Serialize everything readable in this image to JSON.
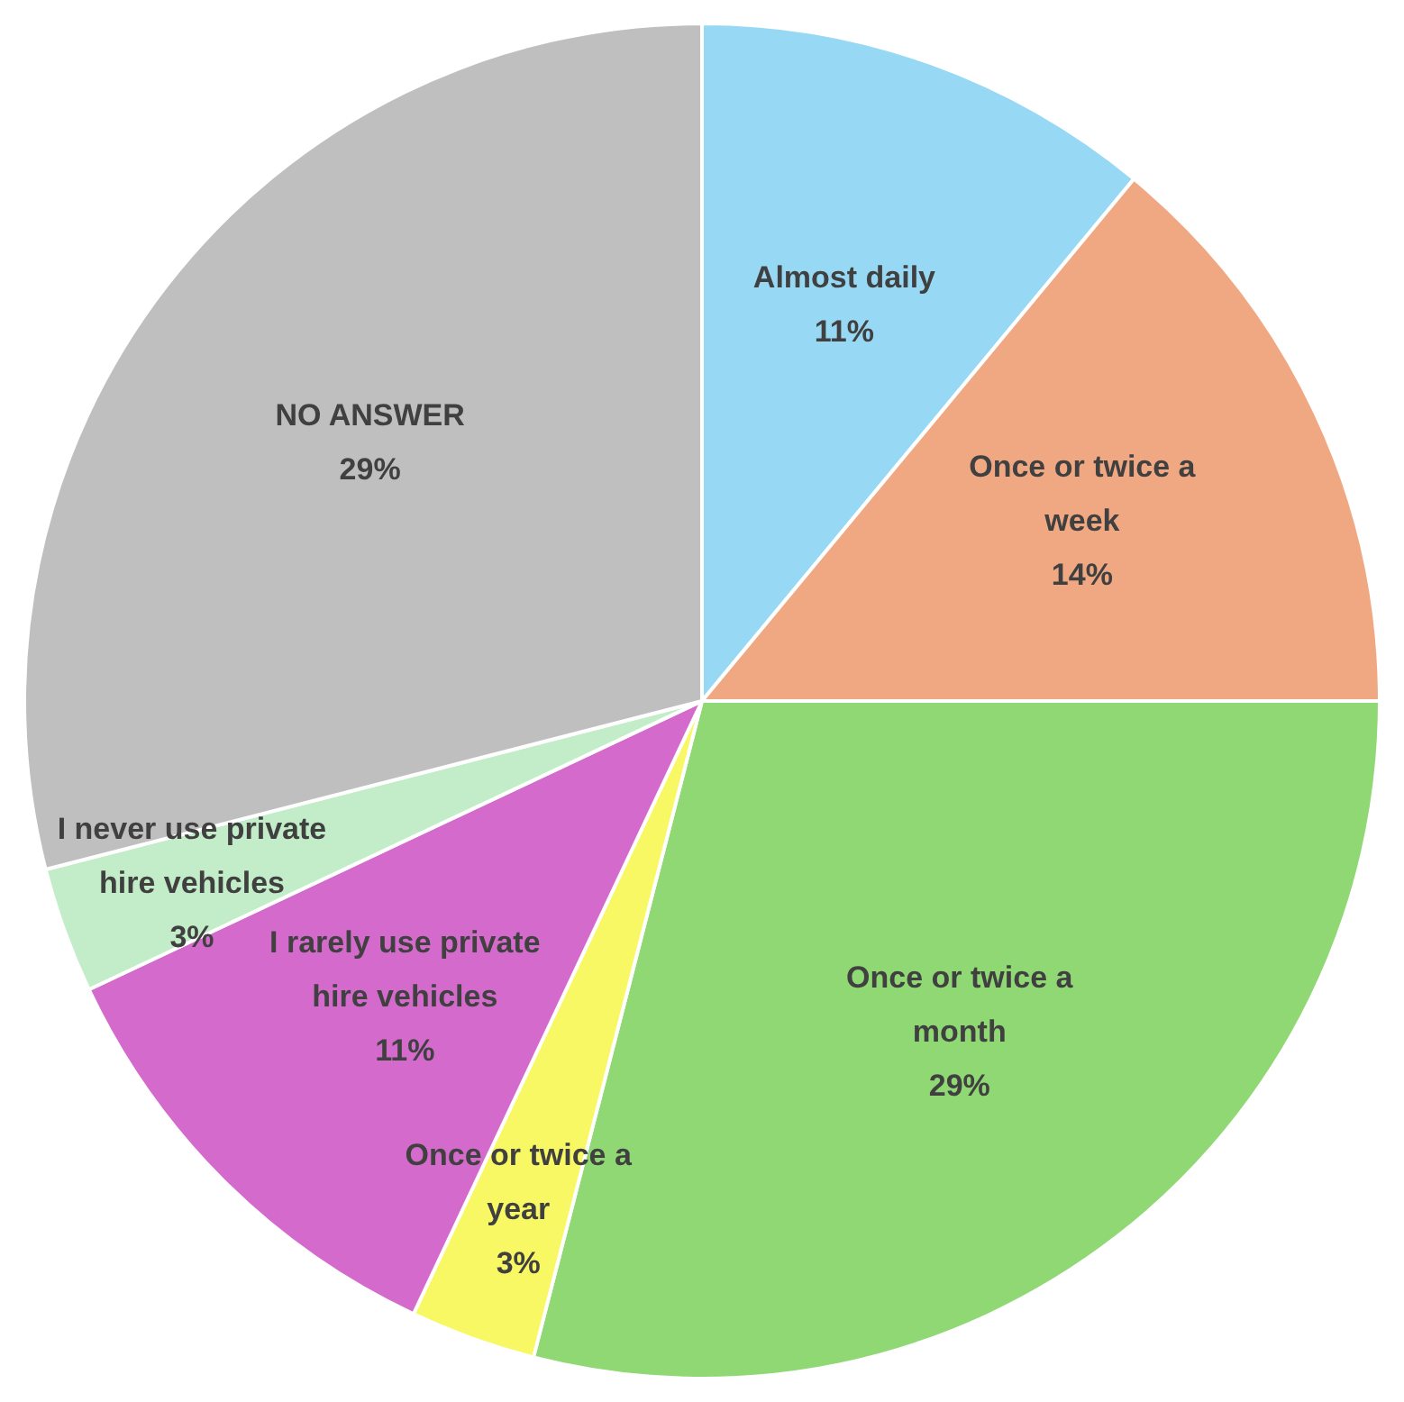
{
  "chart_data": {
    "type": "pie",
    "categories": [
      "Almost daily",
      "Once or twice a week",
      "Once or twice a month",
      "Once or twice a year",
      "I rarely use private hire vehicles",
      "I never use private hire vehicles",
      "NO ANSWER"
    ],
    "values": [
      11,
      14,
      29,
      3,
      11,
      3,
      29
    ],
    "value_labels": [
      "11%",
      "14%",
      "29%",
      "3%",
      "11%",
      "3%",
      "29%"
    ],
    "colors": [
      "#97d9f5",
      "#f0a882",
      "#8fd874",
      "#f8f864",
      "#d46bcc",
      "#c2edc8",
      "#bfbfbf"
    ],
    "legend": false
  }
}
